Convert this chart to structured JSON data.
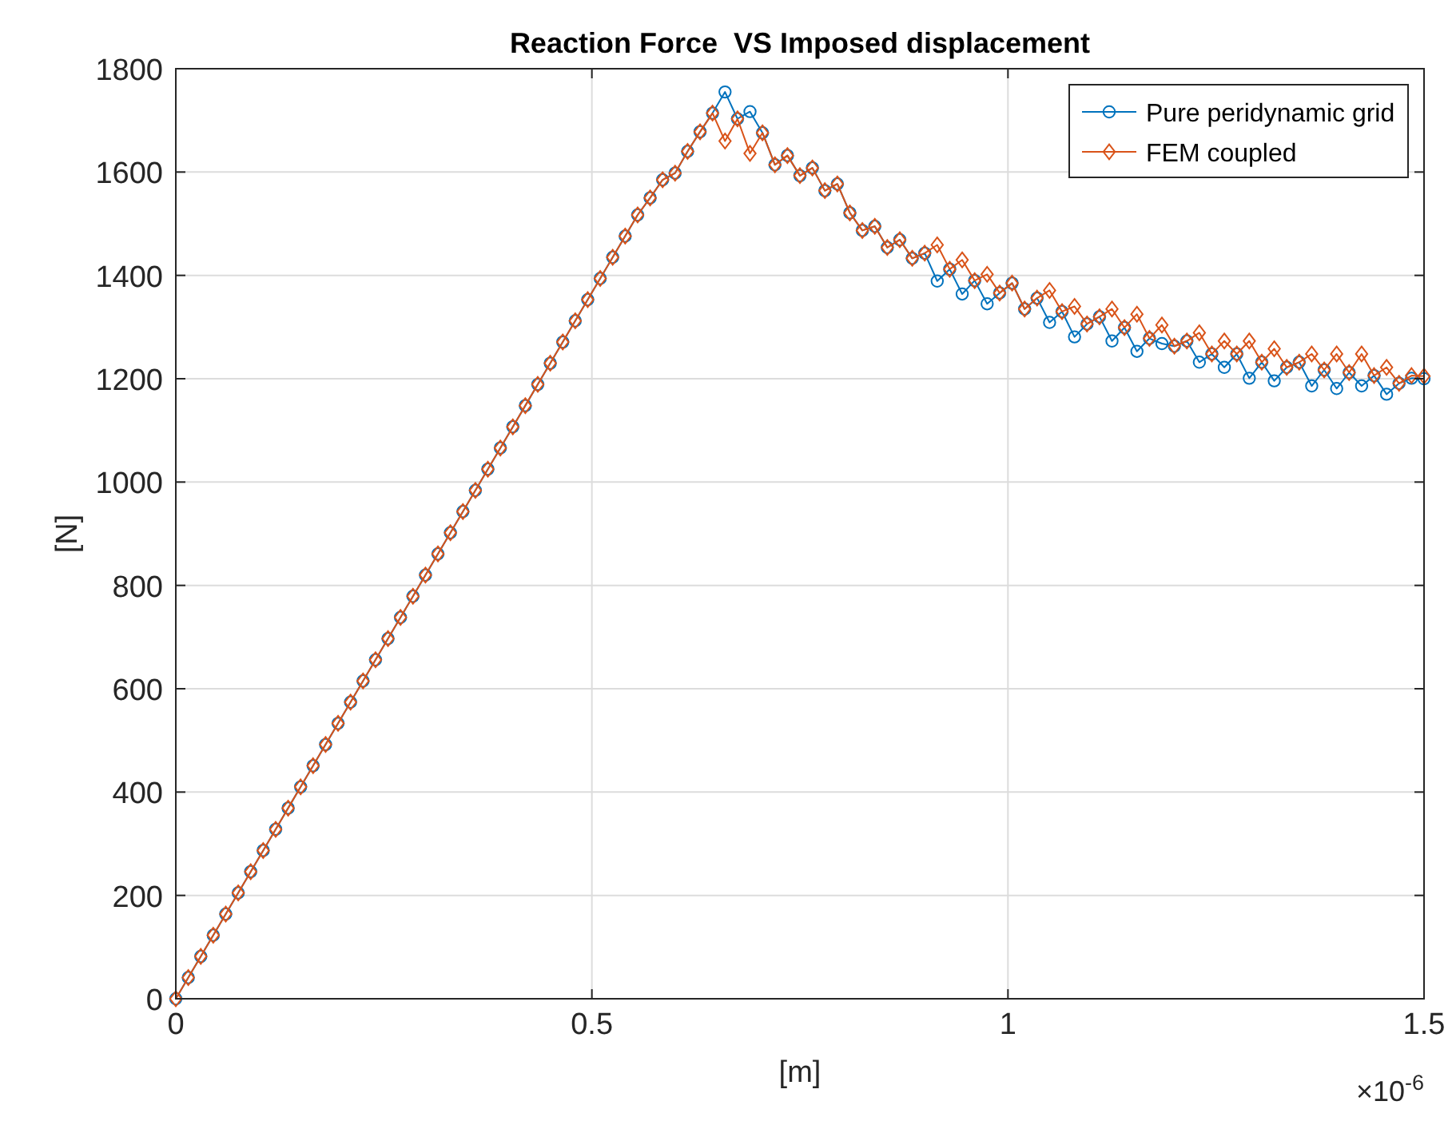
{
  "chart_data": {
    "type": "line",
    "title": "Reaction Force  VS Imposed displacement",
    "xlabel": "[m]",
    "ylabel": "[N]",
    "annotations": [
      "×10$^{-6}$"
    ],
    "x": [
      0,
      0.015,
      0.03,
      0.045,
      0.06,
      0.075,
      0.09,
      0.105,
      0.12,
      0.135,
      0.15,
      0.165,
      0.18,
      0.195,
      0.21,
      0.225,
      0.24,
      0.255,
      0.27,
      0.285,
      0.3,
      0.315,
      0.33,
      0.345,
      0.36,
      0.375,
      0.39,
      0.405,
      0.42,
      0.435,
      0.45,
      0.465,
      0.48,
      0.495,
      0.51,
      0.525,
      0.54,
      0.555,
      0.57,
      0.585,
      0.6,
      0.615,
      0.63,
      0.645,
      0.66,
      0.675,
      0.69,
      0.705,
      0.72,
      0.735,
      0.75,
      0.765,
      0.78,
      0.795,
      0.81,
      0.825,
      0.84,
      0.855,
      0.87,
      0.885,
      0.9,
      0.915,
      0.93,
      0.945,
      0.96,
      0.975,
      0.99,
      1.005,
      1.02,
      1.035,
      1.05,
      1.065,
      1.08,
      1.095,
      1.11,
      1.125,
      1.14,
      1.155,
      1.17,
      1.185,
      1.2,
      1.215,
      1.23,
      1.245,
      1.26,
      1.275,
      1.29,
      1.305,
      1.32,
      1.335,
      1.35,
      1.365,
      1.38,
      1.395,
      1.41,
      1.425,
      1.44,
      1.455,
      1.47,
      1.485,
      1.5
    ],
    "series": [
      {
        "name": "Pure peridynamic grid",
        "color": "#0072bd",
        "marker": "circle",
        "values": [
          0,
          41,
          82,
          123,
          164,
          205,
          246,
          287,
          328,
          369,
          410,
          451,
          492,
          533,
          574,
          615,
          656,
          697,
          738,
          779,
          820,
          861,
          902,
          943,
          984,
          1025,
          1066,
          1107,
          1148,
          1189,
          1230,
          1271,
          1312,
          1353,
          1394,
          1435,
          1476,
          1517,
          1550,
          1585,
          1598,
          1640,
          1678,
          1714,
          1755,
          1703,
          1717,
          1676,
          1614,
          1632,
          1593,
          1608,
          1564,
          1577,
          1521,
          1487,
          1495,
          1454,
          1469,
          1433,
          1443,
          1389,
          1412,
          1364,
          1390,
          1345,
          1366,
          1385,
          1335,
          1356,
          1309,
          1330,
          1281,
          1306,
          1320,
          1273,
          1299,
          1253,
          1278,
          1268,
          1263,
          1273,
          1232,
          1248,
          1222,
          1248,
          1201,
          1232,
          1196,
          1222,
          1232,
          1186,
          1217,
          1181,
          1212,
          1186,
          1206,
          1170,
          1191,
          1201,
          1200
        ]
      },
      {
        "name": "FEM coupled",
        "color": "#d95319",
        "marker": "diamond",
        "values": [
          0,
          41,
          82,
          123,
          164,
          205,
          246,
          287,
          328,
          369,
          410,
          451,
          492,
          533,
          574,
          615,
          656,
          697,
          738,
          779,
          820,
          861,
          902,
          943,
          984,
          1025,
          1066,
          1107,
          1148,
          1189,
          1230,
          1271,
          1312,
          1353,
          1394,
          1435,
          1476,
          1517,
          1550,
          1585,
          1598,
          1640,
          1678,
          1714,
          1660,
          1703,
          1636,
          1676,
          1614,
          1632,
          1593,
          1608,
          1564,
          1577,
          1521,
          1487,
          1495,
          1454,
          1469,
          1433,
          1443,
          1459,
          1412,
          1430,
          1390,
          1402,
          1366,
          1385,
          1335,
          1356,
          1371,
          1330,
          1340,
          1306,
          1320,
          1335,
          1299,
          1325,
          1278,
          1304,
          1263,
          1273,
          1289,
          1248,
          1273,
          1248,
          1273,
          1232,
          1258,
          1222,
          1232,
          1248,
          1217,
          1248,
          1212,
          1248,
          1206,
          1222,
          1191,
          1206,
          1205
        ]
      }
    ],
    "xlim": [
      0,
      1.5
    ],
    "xticks": [
      0,
      0.5,
      1,
      1.5
    ],
    "ylim": [
      0,
      1800
    ],
    "yticks": [
      0,
      200,
      400,
      600,
      800,
      1000,
      1200,
      1400,
      1600,
      1800
    ],
    "grid": true,
    "legend": "top right",
    "line_style": "solid"
  }
}
